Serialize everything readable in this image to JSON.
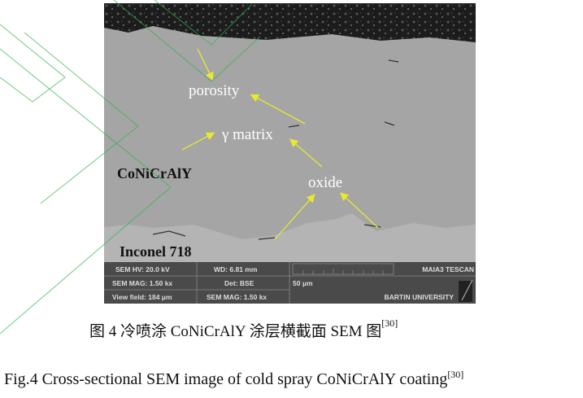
{
  "figure": {
    "labels": {
      "porosity": "porosity",
      "gamma_matrix": "γ matrix",
      "coating": "CoNiCrAlY",
      "oxide": "oxide",
      "substrate": "Inconel 718"
    },
    "info_bar": {
      "hv": "SEM HV: 20.0 kV",
      "wd": "WD: 6.81 mm",
      "instrument": "MAIA3 TESCAN",
      "mag": "SEM MAG: 1.50 kx",
      "det": "Det: BSE",
      "scale": "50 μm",
      "view_field": "View field: 184 μm",
      "mag2": "SEM MAG: 1.50 kx",
      "institution": "BARTIN UNIVERSITY"
    },
    "colors": {
      "arrow": "#e8e830",
      "watermark": "#2db34a"
    }
  },
  "caption_zh": {
    "text": "图 4 冷喷涂 CoNiCrAlY 涂层横截面 SEM 图",
    "ref": "[30]"
  },
  "caption_en": {
    "text": "Fig.4 Cross-sectional SEM image of cold spray CoNiCrAlY coating",
    "ref": "[30]"
  }
}
